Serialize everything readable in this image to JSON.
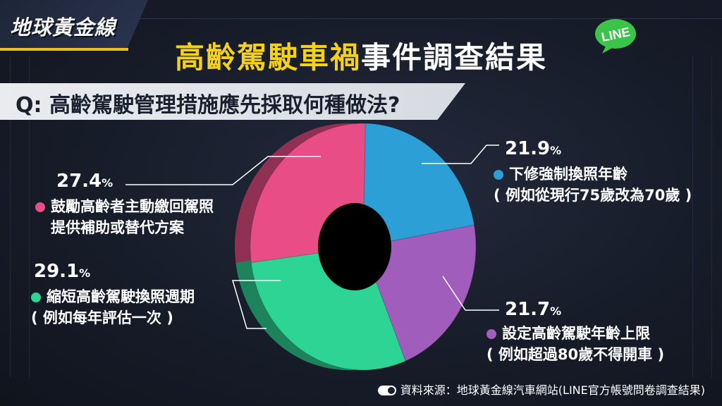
{
  "brand": {
    "logo_text": "地球黃金線"
  },
  "title": {
    "highlight": "高齡駕駛車禍",
    "rest": "事件調查結果"
  },
  "line_icon": {
    "text": "LINE",
    "color": "#3cc34a"
  },
  "question": "Q: 高齡駕駛管理措施應先採取何種做法?",
  "source": "資料來源：地球黃金線汽車網站(LINE官方帳號問卷調查結果)",
  "chart_data": {
    "type": "pie",
    "donut": true,
    "slices": [
      {
        "pct_value": "21.9",
        "pct_unit": "%",
        "value": 21.9,
        "line1": "下修強制換照年齡",
        "line2": "( 例如從現行75歲改為70歲 )",
        "color": "#2b9fd6"
      },
      {
        "pct_value": "21.7",
        "pct_unit": "%",
        "value": 21.7,
        "line1": "設定高齡駕駛年齡上限",
        "line2": "( 例如超過80歲不得開車 )",
        "color": "#a05dbb"
      },
      {
        "pct_value": "29.1",
        "pct_unit": "%",
        "value": 29.1,
        "line1": "縮短高齡駕駛換照週期",
        "line2": "( 例如每年評估一次 )",
        "color": "#2dd494"
      },
      {
        "pct_value": "27.4",
        "pct_unit": "%",
        "value": 27.4,
        "line1": "鼓勵高齡者主動繳回駕照",
        "line2": "提供補助或替代方案",
        "color": "#e84d86"
      }
    ]
  }
}
